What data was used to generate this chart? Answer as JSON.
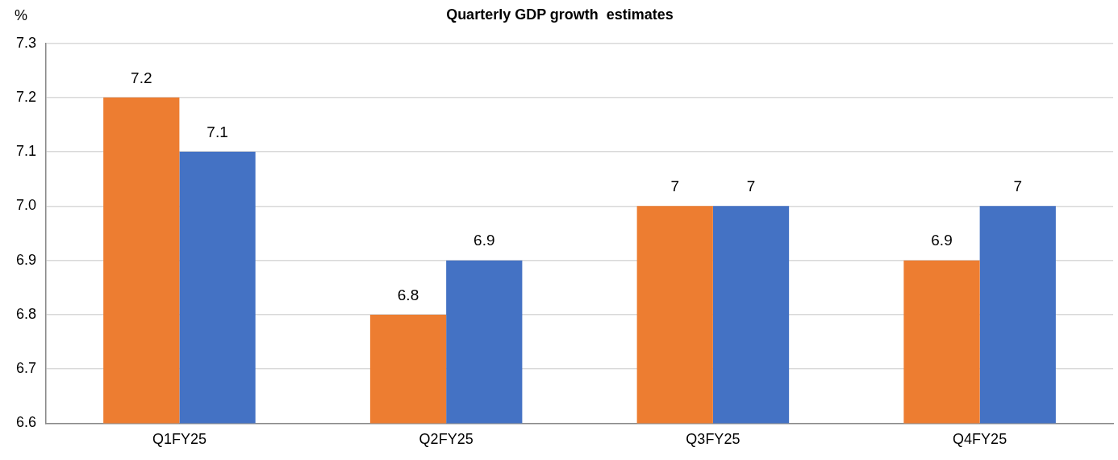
{
  "chart_data": {
    "type": "bar",
    "title": "Quarterly GDP growth  estimates",
    "ylabel": "%",
    "categories": [
      "Q1FY25",
      "Q2FY25",
      "Q3FY25",
      "Q4FY25"
    ],
    "series": [
      {
        "color": "#ed7d31",
        "values": [
          7.2,
          6.8,
          7,
          6.9
        ]
      },
      {
        "color": "#4472c4",
        "values": [
          7.1,
          6.9,
          7,
          7
        ]
      }
    ],
    "ylim": [
      6.6,
      7.3
    ],
    "yticks": [
      6.6,
      6.7,
      6.8,
      6.9,
      {
        "value": 7,
        "label": "7.0"
      },
      7.1,
      7.2,
      7.3
    ],
    "grid": "y",
    "legend": false,
    "data_labels": true
  }
}
